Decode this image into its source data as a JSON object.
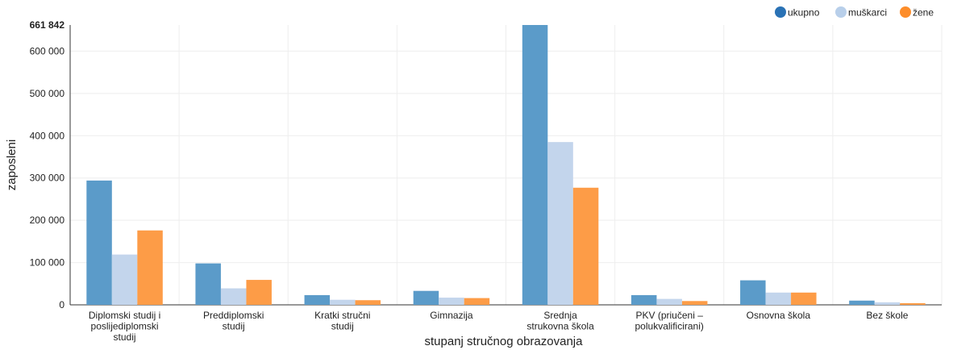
{
  "chart_data": {
    "type": "bar",
    "xlabel": "stupanj stručnog obrazovanja",
    "ylabel": "zaposleni",
    "ylim": [
      0,
      661842
    ],
    "ymax_label": "661 842",
    "yticks": [
      {
        "value": 0,
        "label": "0"
      },
      {
        "value": 100000,
        "label": "100 000"
      },
      {
        "value": 200000,
        "label": "200 000"
      },
      {
        "value": 300000,
        "label": "300 000"
      },
      {
        "value": 400000,
        "label": "400 000"
      },
      {
        "value": 500000,
        "label": "500 000"
      },
      {
        "value": 600000,
        "label": "600 000"
      }
    ],
    "categories": [
      [
        "Diplomski studij i",
        "poslijediplomski",
        "studij"
      ],
      [
        "Preddiplomski",
        "studij"
      ],
      [
        "Kratki stručni",
        "studij"
      ],
      [
        "Gimnazija"
      ],
      [
        "Srednja",
        "strukovna škola"
      ],
      [
        "PKV (priučeni –",
        "polukvalificirani)"
      ],
      [
        "Osnovna škola"
      ],
      [
        "Bez škole"
      ]
    ],
    "series": [
      {
        "name": "ukupno",
        "color": "#5b9bc9",
        "legend_color": "#2a72b5",
        "values": [
          294000,
          98000,
          23000,
          33000,
          661842,
          23000,
          58000,
          10000
        ]
      },
      {
        "name": "muškarci",
        "color": "#c3d5ec",
        "legend_color": "#b8cfea",
        "values": [
          119000,
          39000,
          12000,
          17000,
          385000,
          14000,
          29000,
          6000
        ]
      },
      {
        "name": "žene",
        "color": "#fd9c47",
        "legend_color": "#fd8d2a",
        "values": [
          176000,
          59000,
          11000,
          16000,
          277000,
          9000,
          29000,
          4000
        ]
      }
    ],
    "legend_position": "top-right",
    "grid": true
  }
}
